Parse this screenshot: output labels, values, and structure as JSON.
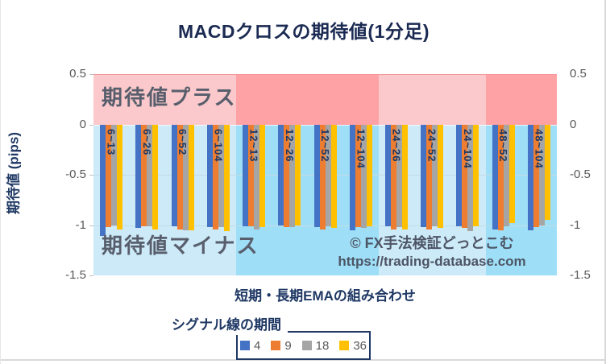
{
  "title": "MACDクロスの期待値(1分足)",
  "y_axis_title": "期待値 (pips)",
  "x_axis_title": "短期・長期EMAの組み合わせ",
  "legend_title": "シグナル線の期間",
  "zone_labels": {
    "plus": "期待値プラス",
    "minus": "期待値マイナス"
  },
  "watermark": {
    "line1": "© FX手法検証どっとこむ",
    "line2": "https://trading-database.com"
  },
  "colors": {
    "title": "#1b2a52",
    "axis_title": "#1f3864",
    "tick_text": "#595959",
    "category_label": "#1f3864",
    "zone_label": "#585e6c",
    "watermark": "#4d5566",
    "gridline": "#c2dce6",
    "legend_border": "#1f3864",
    "plus_band_light": "#fbc9cb",
    "plus_band_dark": "#ffa2a5",
    "minus_band_light": "#cdeaf8",
    "minus_band_dark": "#9edff7"
  },
  "chart_data": {
    "type": "bar",
    "title": "MACDクロスの期待値(1分足)",
    "xlabel": "短期・長期EMAの組み合わせ",
    "ylabel": "期待値 (pips)",
    "ylim": [
      -1.5,
      0.5
    ],
    "yticks": [
      0.5,
      0,
      -0.5,
      -1,
      -1.5
    ],
    "grid": true,
    "legend_position": "bottom",
    "legend_title": "シグナル線の期間",
    "categories": [
      "6~13",
      "6~26",
      "6~52",
      "6~104",
      "12~13",
      "12~26",
      "12~52",
      "12~104",
      "24~26",
      "24~52",
      "24~104",
      "48~52",
      "48~104"
    ],
    "series": [
      {
        "name": "4",
        "color": "#4472C4",
        "values": [
          -1.11,
          -1.03,
          -1.01,
          -1.02,
          -1.01,
          -1.0,
          -1.02,
          -1.05,
          -1.01,
          -1.02,
          -1.01,
          -1.04,
          -1.05
        ]
      },
      {
        "name": "9",
        "color": "#ED7D31",
        "values": [
          -1.02,
          -1.01,
          -1.04,
          -1.04,
          -1.01,
          -1.02,
          -1.04,
          -1.02,
          -1.04,
          -1.04,
          -1.03,
          -1.05,
          -1.02
        ]
      },
      {
        "name": "18",
        "color": "#A5A5A5",
        "values": [
          -1.0,
          -1.01,
          -1.05,
          -1.02,
          -1.04,
          -1.02,
          -1.01,
          -1.03,
          -1.02,
          -1.01,
          -1.06,
          -1.01,
          -1.0
        ]
      },
      {
        "name": "36",
        "color": "#FFC000",
        "values": [
          -1.04,
          -1.04,
          -1.05,
          -1.06,
          -1.02,
          -1.0,
          -1.03,
          -1.01,
          -1.04,
          -1.03,
          -1.01,
          -0.98,
          -0.95
        ]
      }
    ],
    "background_bands": [
      {
        "group": "6",
        "span": 4,
        "tone": "light"
      },
      {
        "group": "12",
        "span": 4,
        "tone": "dark"
      },
      {
        "group": "24",
        "span": 3,
        "tone": "light"
      },
      {
        "group": "48",
        "span": 2,
        "tone": "dark"
      }
    ],
    "annotations": [
      "期待値プラス",
      "期待値マイナス",
      "© FX手法検証どっとこむ",
      "https://trading-database.com"
    ]
  }
}
